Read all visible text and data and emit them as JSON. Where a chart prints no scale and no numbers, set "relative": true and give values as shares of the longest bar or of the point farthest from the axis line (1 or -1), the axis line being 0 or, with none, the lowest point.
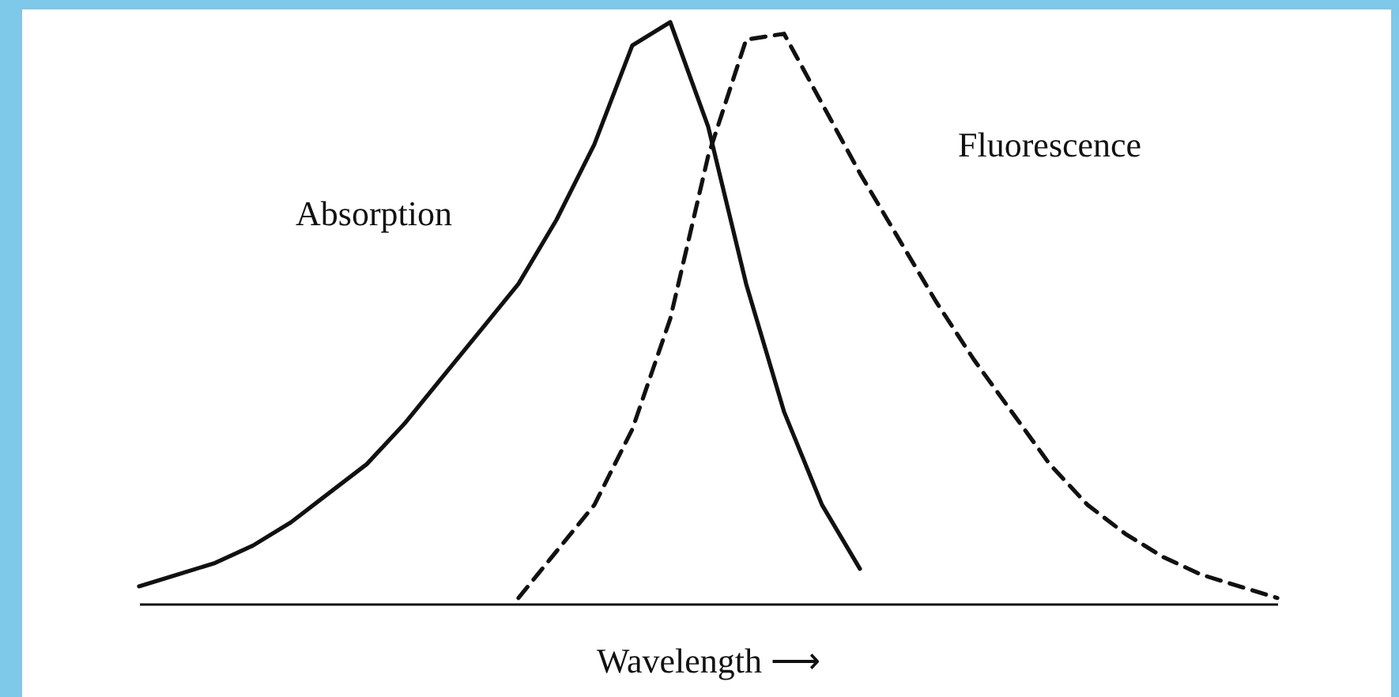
{
  "chart_data": {
    "type": "line",
    "relative": true,
    "xlabel": "Wavelength ⟶",
    "categories": [
      null,
      null,
      null,
      null,
      null,
      null,
      null,
      null,
      null,
      null,
      null,
      null,
      null,
      null,
      null,
      null,
      null,
      null,
      null,
      null,
      null,
      null,
      null,
      null,
      null,
      null,
      null,
      null,
      null,
      null,
      null
    ],
    "series": [
      {
        "name": "Absorption",
        "color": "#111111",
        "line_style": "solid",
        "values": [
          0.03,
          0.05,
          0.07,
          0.1,
          0.14,
          0.19,
          0.24,
          0.31,
          0.39,
          0.47,
          0.55,
          0.66,
          0.79,
          0.96,
          1.0,
          0.82,
          0.55,
          0.33,
          0.17,
          0.06,
          null,
          null,
          null,
          null,
          null,
          null,
          null,
          null,
          null,
          null,
          null
        ]
      },
      {
        "name": "Fluorescence",
        "color": "#111111",
        "line_style": "dashed",
        "values": [
          null,
          null,
          null,
          null,
          null,
          null,
          null,
          null,
          null,
          null,
          0.01,
          0.09,
          0.17,
          0.3,
          0.49,
          0.77,
          0.97,
          0.98,
          0.86,
          0.74,
          0.63,
          0.52,
          0.42,
          0.33,
          0.24,
          0.17,
          0.12,
          0.08,
          0.05,
          0.03,
          0.01
        ]
      }
    ],
    "marker": "none"
  }
}
